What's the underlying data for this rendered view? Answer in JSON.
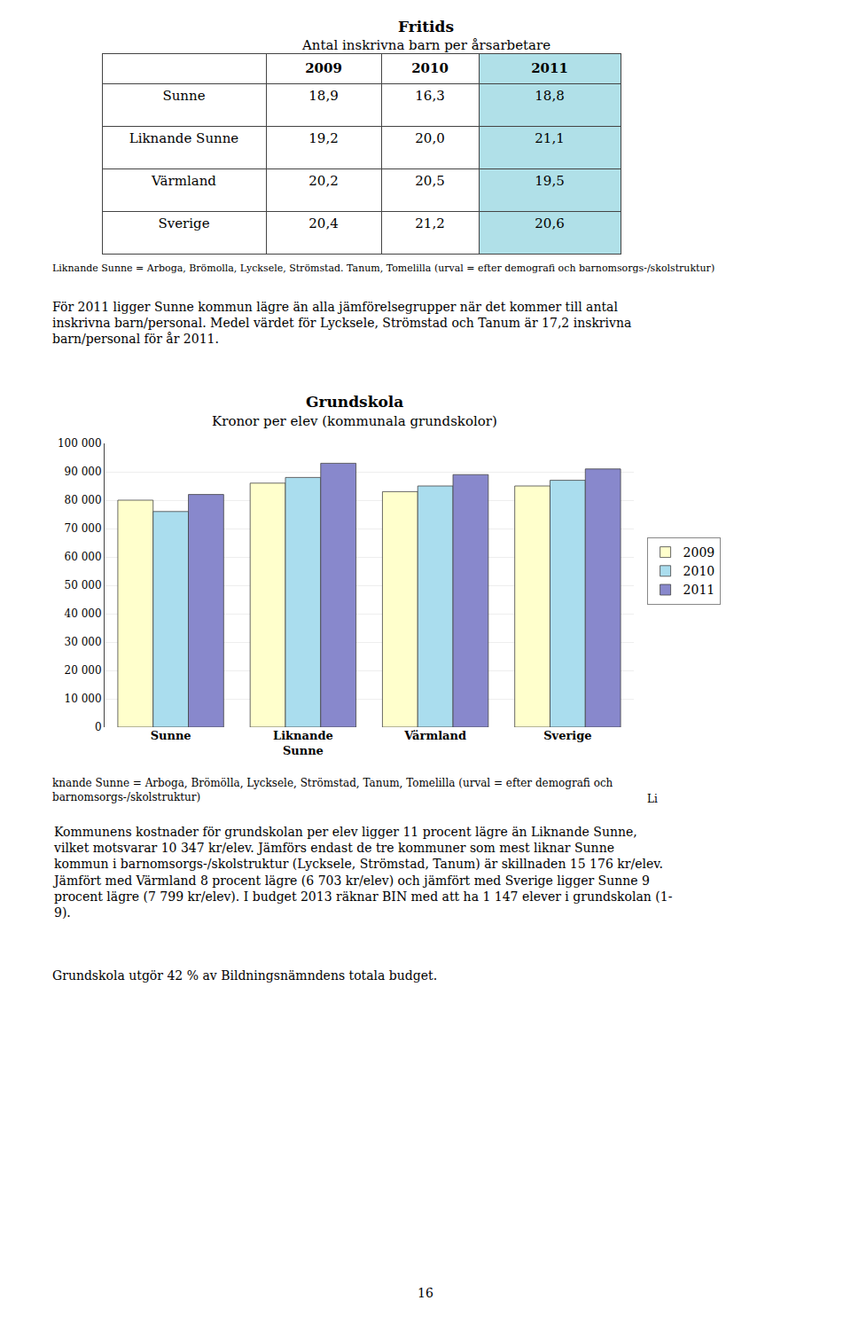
{
  "title": "Fritids",
  "subtitle": "Antal inskrivna barn per årsarbetare",
  "table": {
    "columns": [
      "2009",
      "2010",
      "2011"
    ],
    "rows": [
      [
        "Sunne",
        "18,9",
        "16,3",
        "18,8"
      ],
      [
        "Liknande Sunne",
        "19,2",
        "20,0",
        "21,1"
      ],
      [
        "Värmland",
        "20,2",
        "20,5",
        "19,5"
      ],
      [
        "Sverige",
        "20,4",
        "21,2",
        "20,6"
      ]
    ],
    "color": "#B0E0E8"
  },
  "table_note": "Liknande Sunne = Arboga, Brömolla, Lycksele, Strömstad. Tanum, Tomelilla (urval = efter demografi och barnomsorgs-/skolstruktur)",
  "para1": [
    "För 2011 ligger Sunne kommun lägre än alla jämförelsegrupper när det kommer till antal",
    "inskrivna barn/personal. Medel värdet för Lycksele, Strömstad och Tanum är 17,2 inskrivna",
    "barn/personal för år 2011."
  ],
  "chart_data": {
    "type": "bar",
    "title": "Grundskola",
    "subtitle": "Kronor per elev (kommunala grundskolor)",
    "categories": [
      "Sunne",
      "Liknande\nSunne",
      "Värmland",
      "Sverige"
    ],
    "series": [
      {
        "name": "2009",
        "color": "#FFFFCC",
        "values": [
          80000,
          86000,
          83000,
          85000
        ]
      },
      {
        "name": "2010",
        "color": "#AADDEE",
        "values": [
          76000,
          88000,
          85000,
          87000
        ]
      },
      {
        "name": "2011",
        "color": "#8888CC",
        "values": [
          82000,
          93000,
          89000,
          91000
        ]
      }
    ],
    "ylim": [
      0,
      100000
    ],
    "yticks": [
      0,
      {
        "value": 10000,
        "label": "10 000"
      },
      {
        "value": 20000,
        "label": "20 000"
      },
      {
        "value": 30000,
        "label": "30 000"
      },
      {
        "value": 40000,
        "label": "40 000"
      },
      {
        "value": 50000,
        "label": "50 000"
      },
      {
        "value": 60000,
        "label": "60 000"
      },
      {
        "value": 70000,
        "label": "70 000"
      },
      {
        "value": 80000,
        "label": "80 000"
      },
      {
        "value": 90000,
        "label": "90 000"
      },
      {
        "value": 100000,
        "label": "100 000"
      }
    ],
    "grid": true,
    "legend": "right"
  },
  "note": "knande Sunne = Arboga, Brömölla, Lycksele, Strömstad, Tanum, Tomelilla (urval = efter demografi och\nbarnomsorgs-/skolstruktur)",
  "note_li": "Li",
  "para2": [
    "Kommunens kostnader för grundskolan per elev ligger 11 procent lägre än Liknande Sunne,",
    "vilket motsvarar 10 347 kr/elev. Jämförs endast de tre kommuner som mest liknar Sunne",
    "kommun i barnomsorgs-/skolstruktur (Lycksele, Strömstad, Tanum) är skillnaden 15 176 kr/elev.",
    "Jämfört med Värmland 8 procent lägre (6 703 kr/elev) och jämfört med Sverige ligger Sunne 9",
    "procent lägre (7 799 kr/elev). I budget 2013 räknar BIN med att ha 1 147 elever i grundskolan (1-",
    "9)."
  ],
  "para3": "Grundskola utgör 42 % av Bildningsnämndens totala budget.",
  "page_number": "16"
}
